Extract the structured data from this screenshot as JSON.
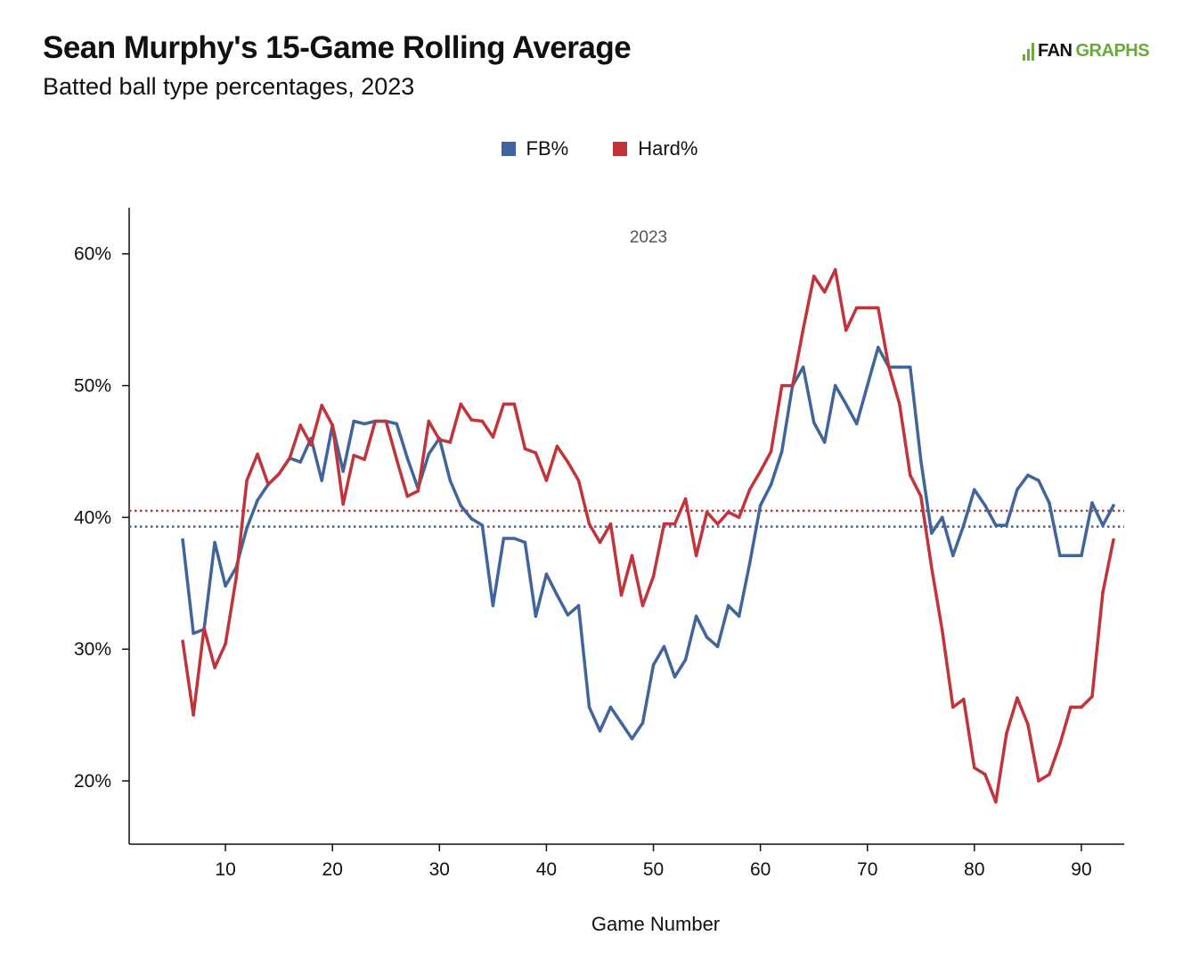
{
  "header": {
    "title": "Sean Murphy's 15-Game Rolling Average",
    "subtitle": "Batted ball type percentages, 2023",
    "logo_left": "FAN",
    "logo_right": "GRAPHS"
  },
  "colors": {
    "fb": "#40659b",
    "hard": "#c0343a",
    "brand": "#6aaa3a"
  },
  "chart_data": {
    "type": "line",
    "xlabel": "Game Number",
    "ylabel": "",
    "annotation": "2023",
    "xlim": [
      1,
      94
    ],
    "ylim": [
      15.2,
      63.5
    ],
    "xticks": [
      10,
      20,
      30,
      40,
      50,
      60,
      70,
      80,
      90
    ],
    "yticks": [
      20,
      30,
      40,
      50,
      60
    ],
    "ytick_labels": [
      "20%",
      "30%",
      "40%",
      "50%",
      "60%"
    ],
    "legend": "top-center",
    "x": [
      6,
      7,
      8,
      9,
      10,
      11,
      12,
      13,
      14,
      15,
      16,
      17,
      18,
      19,
      20,
      21,
      22,
      23,
      24,
      25,
      26,
      27,
      28,
      29,
      30,
      31,
      32,
      33,
      34,
      35,
      36,
      37,
      38,
      39,
      40,
      41,
      42,
      43,
      44,
      45,
      46,
      47,
      48,
      49,
      50,
      51,
      52,
      53,
      54,
      55,
      56,
      57,
      58,
      59,
      60,
      61,
      62,
      63,
      64,
      65,
      66,
      67,
      68,
      69,
      70,
      71,
      72,
      73,
      74,
      75,
      76,
      77,
      78,
      79,
      80,
      81,
      82,
      83,
      84,
      85,
      86,
      87,
      88,
      89,
      90,
      91,
      92,
      93
    ],
    "series": [
      {
        "name": "FB%",
        "color": "#40659b",
        "average": 39.3,
        "values": [
          38.3,
          31.2,
          31.5,
          38.1,
          34.8,
          36.2,
          39.2,
          41.3,
          42.5,
          43.3,
          44.5,
          44.2,
          46.0,
          42.8,
          47.0,
          43.5,
          47.3,
          47.1,
          47.3,
          47.3,
          47.1,
          44.5,
          42.2,
          44.8,
          46.0,
          42.8,
          40.9,
          39.9,
          39.4,
          33.3,
          38.4,
          38.4,
          38.1,
          32.5,
          35.7,
          34.1,
          32.6,
          33.3,
          25.6,
          23.8,
          25.6,
          24.4,
          23.2,
          24.4,
          28.8,
          30.2,
          27.9,
          29.2,
          32.5,
          30.9,
          30.2,
          33.3,
          32.5,
          36.5,
          40.9,
          42.5,
          45.0,
          50.0,
          51.4,
          47.2,
          45.7,
          50.0,
          48.6,
          47.1,
          50.0,
          52.9,
          51.4,
          51.4,
          51.4,
          44.3,
          38.8,
          40.0,
          37.1,
          39.4,
          42.1,
          40.9,
          39.4,
          39.4,
          42.1,
          43.2,
          42.8,
          41.1,
          37.1,
          37.1,
          37.1,
          41.1,
          39.4,
          40.9
        ]
      },
      {
        "name": "Hard%",
        "color": "#c0343a",
        "average": 40.5,
        "values": [
          30.6,
          25.0,
          31.6,
          28.6,
          30.4,
          35.4,
          42.8,
          44.8,
          42.5,
          43.3,
          44.5,
          47.0,
          45.5,
          48.5,
          47.0,
          41.0,
          44.7,
          44.4,
          47.3,
          47.3,
          44.4,
          41.6,
          42.0,
          47.3,
          45.9,
          45.7,
          48.6,
          47.4,
          47.3,
          46.1,
          48.6,
          48.6,
          45.2,
          44.9,
          42.8,
          45.4,
          44.2,
          42.8,
          39.5,
          38.1,
          39.5,
          34.1,
          37.1,
          33.3,
          35.5,
          39.5,
          39.5,
          41.4,
          37.1,
          40.4,
          39.5,
          40.4,
          40.0,
          42.1,
          43.5,
          45.0,
          50.0,
          50.0,
          54.3,
          58.3,
          57.1,
          58.8,
          54.2,
          55.9,
          55.9,
          55.9,
          51.4,
          48.6,
          43.2,
          41.6,
          36.2,
          31.4,
          25.6,
          26.2,
          21.0,
          20.5,
          18.4,
          23.6,
          26.3,
          24.3,
          20.0,
          20.5,
          22.8,
          25.6,
          25.6,
          26.4,
          34.3,
          38.3
        ]
      }
    ]
  }
}
